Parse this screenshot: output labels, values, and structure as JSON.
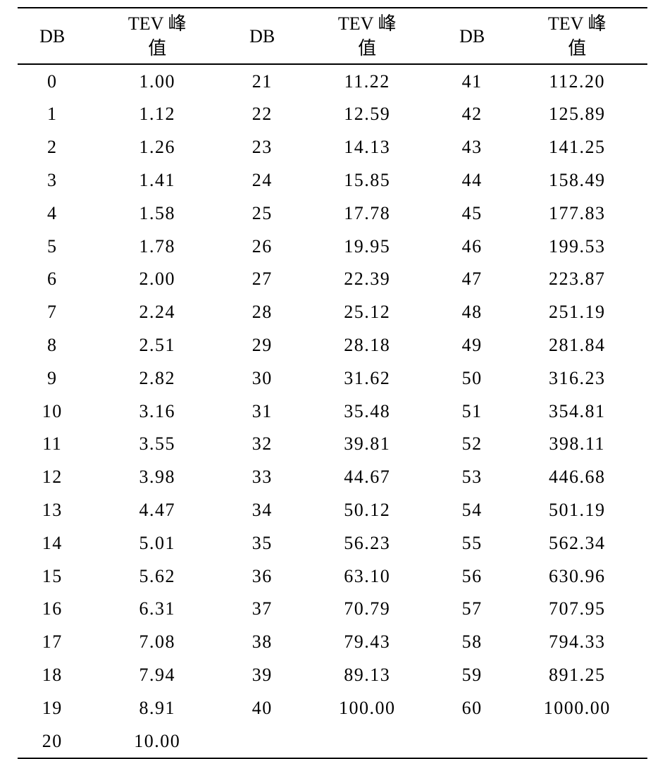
{
  "table": {
    "type": "table",
    "background_color": "#ffffff",
    "text_color": "#000000",
    "border_color": "#000000",
    "border_width": 2,
    "font_family": "SimSun",
    "font_size": 26,
    "header_db": "DB",
    "header_tev_line1": "TEV 峰",
    "header_tev_line2": "值",
    "column_widths": [
      "11%",
      "22.3%",
      "11%",
      "22.3%",
      "11%",
      "22.3%"
    ],
    "rows": [
      {
        "db1": "0",
        "tev1": "1.00",
        "db2": "21",
        "tev2": "11.22",
        "db3": "41",
        "tev3": "112.20"
      },
      {
        "db1": "1",
        "tev1": "1.12",
        "db2": "22",
        "tev2": "12.59",
        "db3": "42",
        "tev3": "125.89"
      },
      {
        "db1": "2",
        "tev1": "1.26",
        "db2": "23",
        "tev2": "14.13",
        "db3": "43",
        "tev3": "141.25"
      },
      {
        "db1": "3",
        "tev1": "1.41",
        "db2": "24",
        "tev2": "15.85",
        "db3": "44",
        "tev3": "158.49"
      },
      {
        "db1": "4",
        "tev1": "1.58",
        "db2": "25",
        "tev2": "17.78",
        "db3": "45",
        "tev3": "177.83"
      },
      {
        "db1": "5",
        "tev1": "1.78",
        "db2": "26",
        "tev2": "19.95",
        "db3": "46",
        "tev3": "199.53"
      },
      {
        "db1": "6",
        "tev1": "2.00",
        "db2": "27",
        "tev2": "22.39",
        "db3": "47",
        "tev3": "223.87"
      },
      {
        "db1": "7",
        "tev1": "2.24",
        "db2": "28",
        "tev2": "25.12",
        "db3": "48",
        "tev3": "251.19"
      },
      {
        "db1": "8",
        "tev1": "2.51",
        "db2": "29",
        "tev2": "28.18",
        "db3": "49",
        "tev3": "281.84"
      },
      {
        "db1": "9",
        "tev1": "2.82",
        "db2": "30",
        "tev2": "31.62",
        "db3": "50",
        "tev3": "316.23"
      },
      {
        "db1": "10",
        "tev1": "3.16",
        "db2": "31",
        "tev2": "35.48",
        "db3": "51",
        "tev3": "354.81"
      },
      {
        "db1": "11",
        "tev1": "3.55",
        "db2": "32",
        "tev2": "39.81",
        "db3": "52",
        "tev3": "398.11"
      },
      {
        "db1": "12",
        "tev1": "3.98",
        "db2": "33",
        "tev2": "44.67",
        "db3": "53",
        "tev3": "446.68"
      },
      {
        "db1": "13",
        "tev1": "4.47",
        "db2": "34",
        "tev2": "50.12",
        "db3": "54",
        "tev3": "501.19"
      },
      {
        "db1": "14",
        "tev1": "5.01",
        "db2": "35",
        "tev2": "56.23",
        "db3": "55",
        "tev3": "562.34"
      },
      {
        "db1": "15",
        "tev1": "5.62",
        "db2": "36",
        "tev2": "63.10",
        "db3": "56",
        "tev3": "630.96"
      },
      {
        "db1": "16",
        "tev1": "6.31",
        "db2": "37",
        "tev2": "70.79",
        "db3": "57",
        "tev3": "707.95"
      },
      {
        "db1": "17",
        "tev1": "7.08",
        "db2": "38",
        "tev2": "79.43",
        "db3": "58",
        "tev3": "794.33"
      },
      {
        "db1": "18",
        "tev1": "7.94",
        "db2": "39",
        "tev2": "89.13",
        "db3": "59",
        "tev3": "891.25"
      },
      {
        "db1": "19",
        "tev1": "8.91",
        "db2": "40",
        "tev2": "100.00",
        "db3": "60",
        "tev3": "1000.00"
      },
      {
        "db1": "20",
        "tev1": "10.00",
        "db2": "",
        "tev2": "",
        "db3": "",
        "tev3": ""
      }
    ]
  }
}
